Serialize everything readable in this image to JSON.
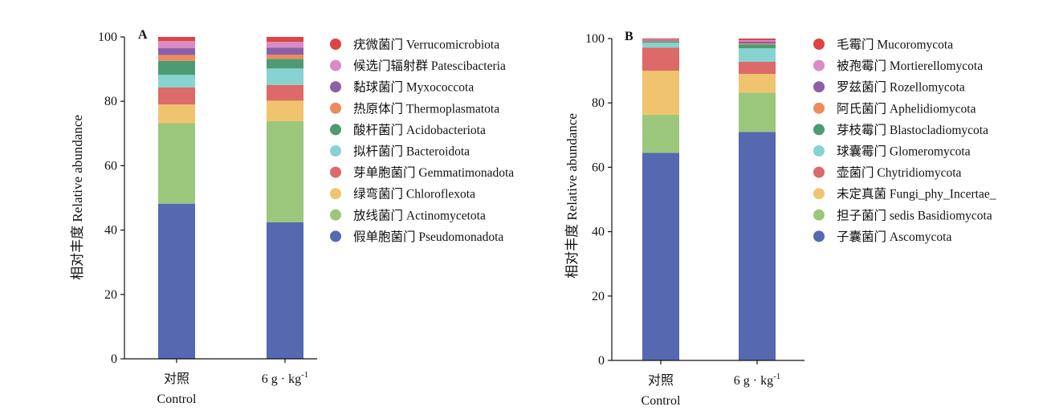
{
  "chart_data": [
    {
      "panel_label": "A",
      "type": "bar",
      "stacked": true,
      "ylabel": "相对丰度 Relative abundance",
      "ylim": [
        0,
        100
      ],
      "yticks": [
        "0",
        "20",
        "40",
        "60",
        "80",
        "100"
      ],
      "categories": [
        {
          "main": "对照",
          "sub": "Control"
        },
        {
          "main": "6 g · kg",
          "sup": "-1",
          "sub": ""
        }
      ],
      "legend_position": "right",
      "series": [
        {
          "name": "假单胞菌门 Pseudomonadota",
          "color": "#5568B0",
          "values": [
            48.2,
            42.4
          ]
        },
        {
          "name": "放线菌门 Actinomycetota",
          "color": "#9AC77B",
          "values": [
            25.0,
            31.4
          ]
        },
        {
          "name": "绿弯菌门 Chloroflexota",
          "color": "#F0C46E",
          "values": [
            5.8,
            6.4
          ]
        },
        {
          "name": "芽单胞菌门 Gemmatimonadota",
          "color": "#DC6A68",
          "values": [
            5.3,
            4.9
          ]
        },
        {
          "name": "拟杆菌门 Bacteroidota",
          "color": "#86D3D1",
          "values": [
            3.9,
            5.1
          ]
        },
        {
          "name": "酸杆菌门 Acidobacteriota",
          "color": "#4E9A72",
          "values": [
            4.4,
            3.0
          ]
        },
        {
          "name": "热原体门 Thermoplasmatota",
          "color": "#EE8A5E",
          "values": [
            1.8,
            1.3
          ]
        },
        {
          "name": "黏球菌门 Myxococcota",
          "color": "#8D5FA6",
          "values": [
            2.1,
            2.2
          ]
        },
        {
          "name": "候选门辐射群 Patescibacteria",
          "color": "#D98BC4",
          "values": [
            2.2,
            1.8
          ]
        },
        {
          "name": "疣微菌门 Verrucomicrobiota",
          "color": "#DD4444",
          "values": [
            1.3,
            1.5
          ]
        }
      ]
    },
    {
      "panel_label": "B",
      "type": "bar",
      "stacked": true,
      "ylabel": "相对丰度 Relative abundance",
      "ylim": [
        0,
        100
      ],
      "yticks": [
        "0",
        "20",
        "40",
        "60",
        "80",
        "100"
      ],
      "categories": [
        {
          "main": "对照",
          "sub": "Control"
        },
        {
          "main": "6 g · kg",
          "sup": "-1",
          "sub": ""
        }
      ],
      "legend_position": "right",
      "series": [
        {
          "name": "子囊菌门 Ascomycota",
          "color": "#5568B0",
          "values": [
            64.5,
            71.0
          ]
        },
        {
          "name": "担子菌门 sedis Basidiomycota",
          "color": "#9AC77B",
          "values": [
            11.8,
            12.2
          ]
        },
        {
          "name": "未定真菌 Fungi_phy_Incertae_",
          "color": "#F0C46E",
          "values": [
            13.7,
            5.8
          ]
        },
        {
          "name": "壶菌门 Chytridiomycota",
          "color": "#DC6A68",
          "values": [
            7.2,
            3.8
          ]
        },
        {
          "name": "球囊霉门 Glomeromycota",
          "color": "#86D3D1",
          "values": [
            1.5,
            4.2
          ]
        },
        {
          "name": "芽枝霉门 Blastocladiomycota",
          "color": "#4E9A72",
          "values": [
            0.4,
            1.2
          ]
        },
        {
          "name": "阿氏菌门 Aphelidiomycota",
          "color": "#EE8A5E",
          "values": [
            0.2,
            0.3
          ]
        },
        {
          "name": "罗兹菌门 Rozellomycota",
          "color": "#8D5FA6",
          "values": [
            0.2,
            0.6
          ]
        },
        {
          "name": "被孢霉门 Mortierellomycota",
          "color": "#D98BC4",
          "values": [
            0.2,
            0.4
          ]
        },
        {
          "name": "毛霉门 Mucoromycota",
          "color": "#DD4444",
          "values": [
            0.3,
            0.5
          ]
        }
      ]
    }
  ]
}
